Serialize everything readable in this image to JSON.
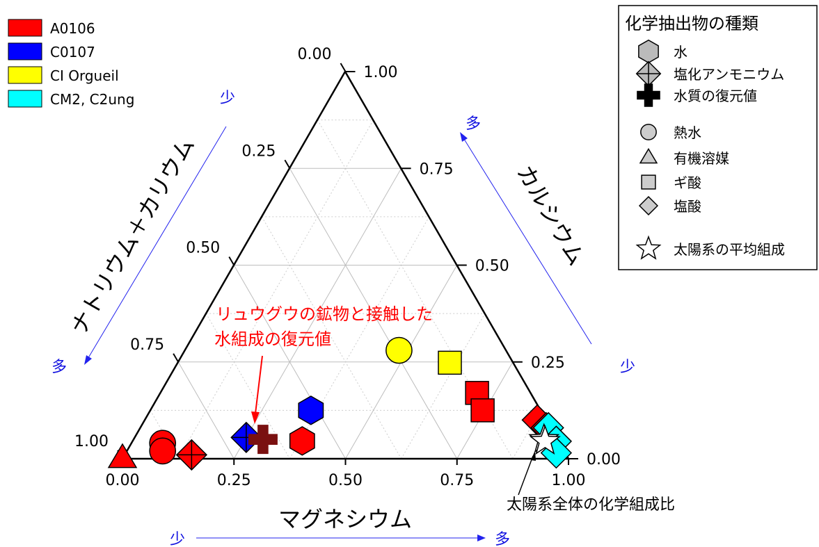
{
  "chart_data": {
    "type": "ternary-scatter",
    "title": "",
    "axes": {
      "bottom": {
        "label": "マグネシウム",
        "direction": {
          "low": "少",
          "high": "多"
        },
        "ticks": [
          "0.00",
          "0.25",
          "0.50",
          "0.75",
          "1.00"
        ]
      },
      "right": {
        "label": "カルシウム",
        "direction": {
          "low": "少",
          "high": "多"
        },
        "ticks": [
          "0.00",
          "0.25",
          "0.50",
          "0.75",
          "1.00"
        ]
      },
      "left": {
        "label": "ナトリウム＋カリウム",
        "direction": {
          "low": "少",
          "high": "多"
        },
        "ticks": [
          "0.00",
          "0.25",
          "0.50",
          "0.75",
          "1.00"
        ]
      },
      "range": [
        0,
        1
      ],
      "grid": true
    },
    "sample_legend": [
      {
        "name": "A0106",
        "color": "#ff0000"
      },
      {
        "name": "C0107",
        "color": "#0000ff"
      },
      {
        "name": "CI Orgueil",
        "color": "#ffff00"
      },
      {
        "name": "CM2, C2ung",
        "color": "#00ffff"
      }
    ],
    "type_legend": {
      "title": "化学抽出物の種類",
      "items": [
        {
          "marker": "hexagon",
          "label": "水"
        },
        {
          "marker": "diamond-cross",
          "label": "塩化アンモニウム"
        },
        {
          "marker": "plus",
          "label": "水質の復元値"
        },
        {
          "marker": "circle",
          "label": "熱水"
        },
        {
          "marker": "triangle",
          "label": "有機溶媒"
        },
        {
          "marker": "square",
          "label": "ギ酸"
        },
        {
          "marker": "diamond",
          "label": "塩酸"
        },
        {
          "marker": "star",
          "label": "太陽系の平均組成"
        }
      ]
    },
    "points": [
      {
        "sample": "A0106",
        "marker": "triangle",
        "mg": 0.0,
        "ca": 0.0
      },
      {
        "sample": "A0106",
        "marker": "circle",
        "mg": 0.07,
        "ca": 0.04
      },
      {
        "sample": "A0106",
        "marker": "circle",
        "mg": 0.08,
        "ca": 0.02
      },
      {
        "sample": "A0106",
        "marker": "diamond-cross",
        "mg": 0.15,
        "ca": 0.01
      },
      {
        "sample": "C0107",
        "marker": "diamond-cross",
        "mg": 0.25,
        "ca": 0.055
      },
      {
        "sample": "A0106",
        "marker": "plus",
        "mg": 0.29,
        "ca": 0.05
      },
      {
        "sample": "A0106",
        "marker": "hexagon",
        "mg": 0.38,
        "ca": 0.046
      },
      {
        "sample": "C0107",
        "marker": "hexagon",
        "mg": 0.36,
        "ca": 0.125
      },
      {
        "sample": "CI Orgueil",
        "marker": "circle",
        "mg": 0.48,
        "ca": 0.28
      },
      {
        "sample": "CI Orgueil",
        "marker": "square",
        "mg": 0.61,
        "ca": 0.248
      },
      {
        "sample": "A0106",
        "marker": "square",
        "mg": 0.71,
        "ca": 0.17
      },
      {
        "sample": "A0106",
        "marker": "square",
        "mg": 0.745,
        "ca": 0.125
      },
      {
        "sample": "A0106",
        "marker": "diamond",
        "mg": 0.88,
        "ca": 0.1
      },
      {
        "sample": "A0106",
        "marker": "diamond",
        "mg": 0.91,
        "ca": 0.08
      },
      {
        "sample": "CM2, C2ung",
        "marker": "diamond",
        "mg": 0.915,
        "ca": 0.08
      },
      {
        "sample": "CM2, C2ung",
        "marker": "diamond",
        "mg": 0.95,
        "ca": 0.045
      },
      {
        "sample": "CM2, C2ung",
        "marker": "diamond",
        "mg": 0.965,
        "ca": 0.015
      },
      {
        "sample": "solar",
        "marker": "star",
        "mg": 0.92,
        "ca": 0.05
      },
      {
        "sample": "solar",
        "marker": "star",
        "mg": 0.925,
        "ca": 0.045
      }
    ],
    "annotations": [
      {
        "id": "ryugu",
        "lines": [
          "リュウグウの鉱物と接触した",
          "水組成の復元値"
        ],
        "color": "#ff0000"
      },
      {
        "id": "solar",
        "text": "太陽系全体の化学組成比",
        "color": "#000000"
      }
    ]
  }
}
